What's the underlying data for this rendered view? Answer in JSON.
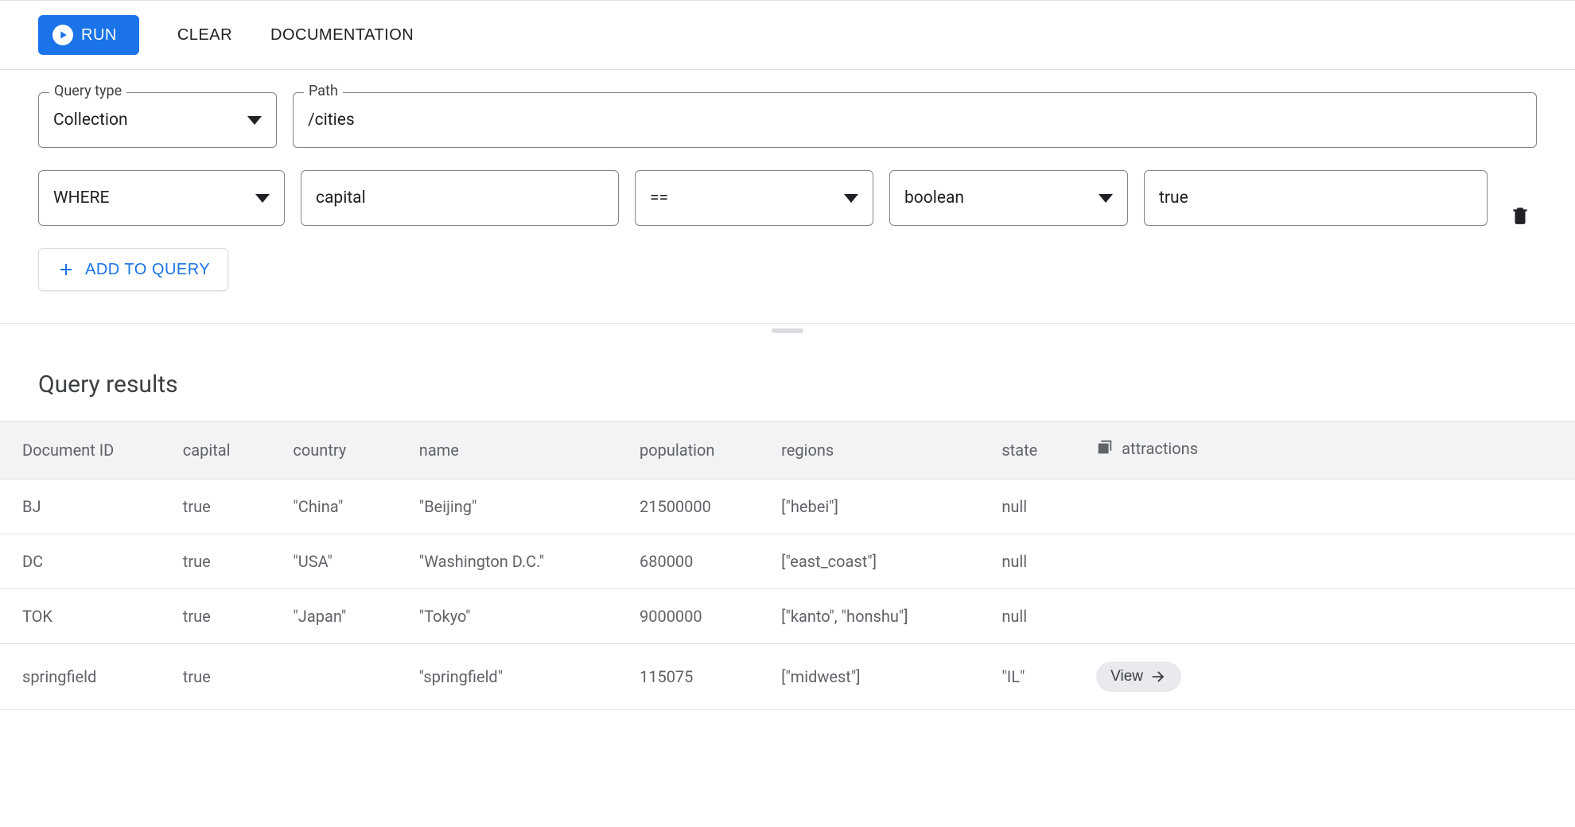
{
  "toolbar": {
    "run_label": "RUN",
    "clear_label": "CLEAR",
    "documentation_label": "DOCUMENTATION"
  },
  "query": {
    "type_label": "Query type",
    "type_value": "Collection",
    "path_label": "Path",
    "path_value": "/cities",
    "condition": {
      "clause": "WHERE",
      "field": "capital",
      "operator": "==",
      "value_type": "boolean",
      "value": "true"
    },
    "add_label": "ADD TO QUERY"
  },
  "results": {
    "title": "Query results",
    "columns": [
      "Document ID",
      "capital",
      "country",
      "name",
      "population",
      "regions",
      "state",
      "attractions"
    ],
    "rows": [
      {
        "doc_id": "BJ",
        "capital": "true",
        "country": "\"China\"",
        "name": "\"Beijing\"",
        "population": "21500000",
        "regions": "[\"hebei\"]",
        "state": "null",
        "attractions": ""
      },
      {
        "doc_id": "DC",
        "capital": "true",
        "country": "\"USA\"",
        "name": "\"Washington D.C.\"",
        "population": "680000",
        "regions": "[\"east_coast\"]",
        "state": "null",
        "attractions": ""
      },
      {
        "doc_id": "TOK",
        "capital": "true",
        "country": "\"Japan\"",
        "name": "\"Tokyo\"",
        "population": "9000000",
        "regions": "[\"kanto\", \"honshu\"]",
        "state": "null",
        "attractions": ""
      },
      {
        "doc_id": "springfield",
        "capital": "true",
        "country": "",
        "name": "\"springfield\"",
        "population": "115075",
        "regions": "[\"midwest\"]",
        "state": "\"IL\"",
        "attractions": "View"
      }
    ],
    "view_label": "View"
  },
  "colors": {
    "primary": "#1a73e8",
    "border": "#80868b",
    "header_bg": "#f1f3f4",
    "text_muted": "#5f6368"
  }
}
